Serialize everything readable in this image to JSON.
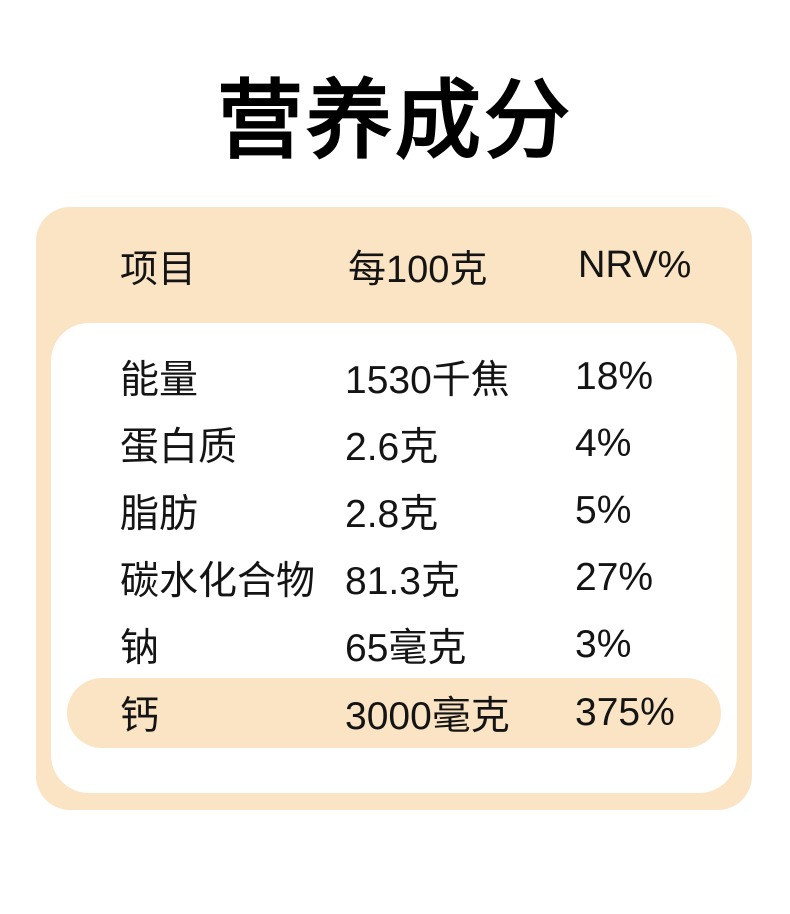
{
  "page": {
    "background_color": "#ffffff",
    "title": "营养成分"
  },
  "card": {
    "background_color": "#FAE4C4",
    "inner_background_color": "#ffffff",
    "highlight_color": "#FAE4C4",
    "header": {
      "item_label": "项目",
      "per_100g_label": "每100克",
      "nrv_label": "NRV%"
    },
    "table": {
      "rows": [
        {
          "name": "能量",
          "amount": "1530千焦",
          "nrv": "18%",
          "highlighted": false
        },
        {
          "name": "蛋白质",
          "amount": "2.6克",
          "nrv": "4%",
          "highlighted": false
        },
        {
          "name": "脂肪",
          "amount": "2.8克",
          "nrv": "5%",
          "highlighted": false
        },
        {
          "name": "碳水化合物",
          "amount": "81.3克",
          "nrv": "27%",
          "highlighted": false
        },
        {
          "name": "钠",
          "amount": "65毫克",
          "nrv": "3%",
          "highlighted": false
        },
        {
          "name": "钙",
          "amount": "3000毫克",
          "nrv": "375%",
          "highlighted": true
        }
      ]
    }
  }
}
